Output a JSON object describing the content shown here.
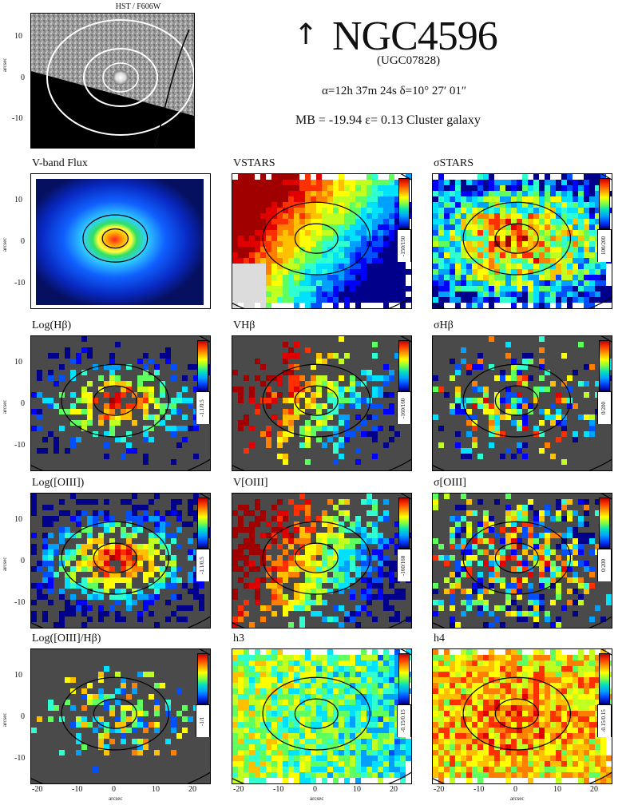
{
  "hst": {
    "caption": "HST / F606W",
    "yticks": [
      "10",
      "0",
      "-10"
    ],
    "ylabel": "arcsec"
  },
  "galaxy": {
    "name": "NGC4596",
    "alt_name": "(UGC07828)",
    "coords": "α=12h 37m 24s   δ=10° 27′ 01″",
    "physical": "MB = -19.94    ε= 0.13    Cluster galaxy"
  },
  "axes": {
    "yticks": [
      "10",
      "0",
      "-10"
    ],
    "xticks": [
      "-20",
      "-10",
      "0",
      "10",
      "20"
    ],
    "xlabel": "arcsec",
    "ylabel": "arcsec"
  },
  "panels": [
    {
      "id": "vflux",
      "title": "V-band Flux",
      "kind": "flux",
      "range": ""
    },
    {
      "id": "vstars",
      "title": "VSTARS",
      "kind": "vel",
      "range": "-150/150"
    },
    {
      "id": "sstars",
      "title": "σSTARS",
      "kind": "sig",
      "range": "100/200"
    },
    {
      "id": "loghb",
      "title": "Log(Hβ)",
      "kind": "emflux",
      "range": "-1.1/0.5"
    },
    {
      "id": "vhb",
      "title": "VHβ",
      "kind": "emvel",
      "range": "-160/160"
    },
    {
      "id": "shb",
      "title": "σHβ",
      "kind": "emsig",
      "range": "0/200"
    },
    {
      "id": "logoiii",
      "title": "Log([OIII])",
      "kind": "emflux2",
      "range": "-1.1/0.5"
    },
    {
      "id": "voiii",
      "title": "V[OIII]",
      "kind": "emvel2",
      "range": "-160/160"
    },
    {
      "id": "soiii",
      "title": "σ[OIII]",
      "kind": "emsig2",
      "range": "0/200"
    },
    {
      "id": "ratio",
      "title": "Log([OIII]/Hβ)",
      "kind": "ratio",
      "range": "-1/1"
    },
    {
      "id": "h3",
      "title": "h3",
      "kind": "h3",
      "range": "-0.15/0.15"
    },
    {
      "id": "h4",
      "title": "h4",
      "kind": "h4",
      "range": "-0.15/0.15"
    }
  ]
}
